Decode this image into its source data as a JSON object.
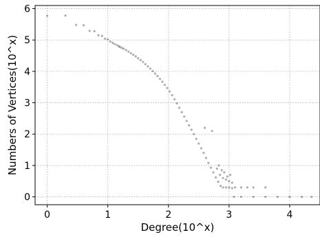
{
  "chart_data": {
    "type": "scatter",
    "xlabel": "Degree(10^x)",
    "ylabel": "Numbers of Vertices(10^x)",
    "xlim": [
      -0.2,
      4.5
    ],
    "ylim": [
      -0.25,
      6.1
    ],
    "xticks": [
      0,
      1,
      2,
      3,
      4
    ],
    "yticks": [
      0,
      1,
      2,
      3,
      4,
      5,
      6
    ],
    "grid": true,
    "legend": "none",
    "marker_color": "#000000",
    "points": [
      [
        0.0,
        5.77
      ],
      [
        0.301,
        5.78
      ],
      [
        0.477,
        5.48
      ],
      [
        0.602,
        5.47
      ],
      [
        0.699,
        5.29
      ],
      [
        0.778,
        5.28
      ],
      [
        0.845,
        5.15
      ],
      [
        0.903,
        5.13
      ],
      [
        0.954,
        5.04
      ],
      [
        1.0,
        5.02
      ],
      [
        1.04,
        4.95
      ],
      [
        1.08,
        4.91
      ],
      [
        1.11,
        4.87
      ],
      [
        1.15,
        4.84
      ],
      [
        1.18,
        4.8
      ],
      [
        1.2,
        4.78
      ],
      [
        1.23,
        4.75
      ],
      [
        1.26,
        4.72
      ],
      [
        1.3,
        4.68
      ],
      [
        1.34,
        4.63
      ],
      [
        1.38,
        4.58
      ],
      [
        1.42,
        4.53
      ],
      [
        1.46,
        4.48
      ],
      [
        1.5,
        4.42
      ],
      [
        1.54,
        4.36
      ],
      [
        1.58,
        4.3
      ],
      [
        1.62,
        4.23
      ],
      [
        1.66,
        4.16
      ],
      [
        1.7,
        4.09
      ],
      [
        1.74,
        4.01
      ],
      [
        1.78,
        3.93
      ],
      [
        1.82,
        3.85
      ],
      [
        1.86,
        3.76
      ],
      [
        1.9,
        3.67
      ],
      [
        1.94,
        3.57
      ],
      [
        1.98,
        3.47
      ],
      [
        2.02,
        3.36
      ],
      [
        2.06,
        3.24
      ],
      [
        2.1,
        3.11
      ],
      [
        2.14,
        2.98
      ],
      [
        2.18,
        2.84
      ],
      [
        2.22,
        2.7
      ],
      [
        2.26,
        2.56
      ],
      [
        2.3,
        2.42
      ],
      [
        2.34,
        2.28
      ],
      [
        2.38,
        2.14
      ],
      [
        2.42,
        2.0
      ],
      [
        2.46,
        1.85
      ],
      [
        2.5,
        1.7
      ],
      [
        2.54,
        1.55
      ],
      [
        2.58,
        1.4
      ],
      [
        2.62,
        1.24
      ],
      [
        2.66,
        1.08
      ],
      [
        2.7,
        0.93
      ],
      [
        2.74,
        0.78
      ],
      [
        2.78,
        0.62
      ],
      [
        2.82,
        0.48
      ],
      [
        2.86,
        0.35
      ],
      [
        2.9,
        0.3
      ],
      [
        2.95,
        0.3
      ],
      [
        3.0,
        0.3
      ],
      [
        3.05,
        0.28
      ],
      [
        3.1,
        0.3
      ],
      [
        3.2,
        0.3
      ],
      [
        3.3,
        0.3
      ],
      [
        3.4,
        0.3
      ],
      [
        3.6,
        0.3
      ],
      [
        2.8,
        0.9
      ],
      [
        2.85,
        0.7
      ],
      [
        2.9,
        0.6
      ],
      [
        2.95,
        0.55
      ],
      [
        3.0,
        0.5
      ],
      [
        3.05,
        0.45
      ],
      [
        2.72,
        2.1
      ],
      [
        2.6,
        2.2
      ],
      [
        2.83,
        1.0
      ],
      [
        2.88,
        0.85
      ],
      [
        2.92,
        0.78
      ],
      [
        2.97,
        0.65
      ],
      [
        3.02,
        0.7
      ],
      [
        3.08,
        0.0
      ],
      [
        3.2,
        0.0
      ],
      [
        3.4,
        0.0
      ],
      [
        3.6,
        0.0
      ],
      [
        3.8,
        0.0
      ],
      [
        4.0,
        0.0
      ],
      [
        4.2,
        0.0
      ],
      [
        4.36,
        0.0
      ]
    ]
  }
}
